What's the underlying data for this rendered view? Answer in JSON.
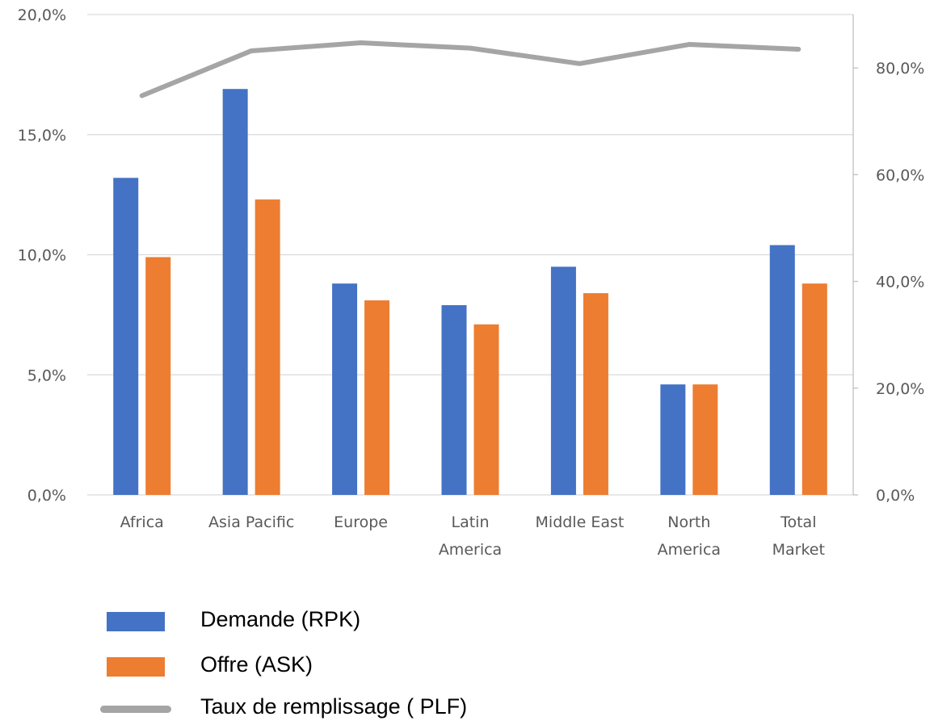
{
  "chart_data": {
    "type": "bar",
    "categories": [
      [
        "Africa"
      ],
      [
        "Asia Pacific"
      ],
      [
        "Europe"
      ],
      [
        "Latin",
        "America"
      ],
      [
        "Middle East"
      ],
      [
        "North",
        "America"
      ],
      [
        "Total",
        "Market"
      ]
    ],
    "series": [
      {
        "name": "Demande (RPK)",
        "type": "bar",
        "axis": "left",
        "color": "#4472C4",
        "values": [
          13.2,
          16.9,
          8.8,
          7.9,
          9.5,
          4.6,
          10.4
        ]
      },
      {
        "name": "Offre (ASK)",
        "type": "bar",
        "axis": "left",
        "color": "#ED7D31",
        "values": [
          9.9,
          12.3,
          8.1,
          7.1,
          8.4,
          4.6,
          8.8
        ]
      },
      {
        "name": "Taux de remplissage ( PLF)",
        "type": "line",
        "axis": "right",
        "color": "#A5A5A5",
        "values": [
          74.8,
          83.2,
          84.7,
          83.7,
          80.8,
          84.4,
          83.5
        ]
      }
    ],
    "y_left": {
      "min": 0,
      "max": 20,
      "step": 5,
      "tick_labels": [
        "0,0%",
        "5,0%",
        "10,0%",
        "15,0%",
        "20,0%"
      ]
    },
    "y_right": {
      "min": 0,
      "max": 90,
      "step": 20,
      "tick_labels": [
        "0,0%",
        "20,0%",
        "40,0%",
        "60,0%",
        "80,0%"
      ]
    },
    "grid": true,
    "legend_position": "bottom-left"
  }
}
